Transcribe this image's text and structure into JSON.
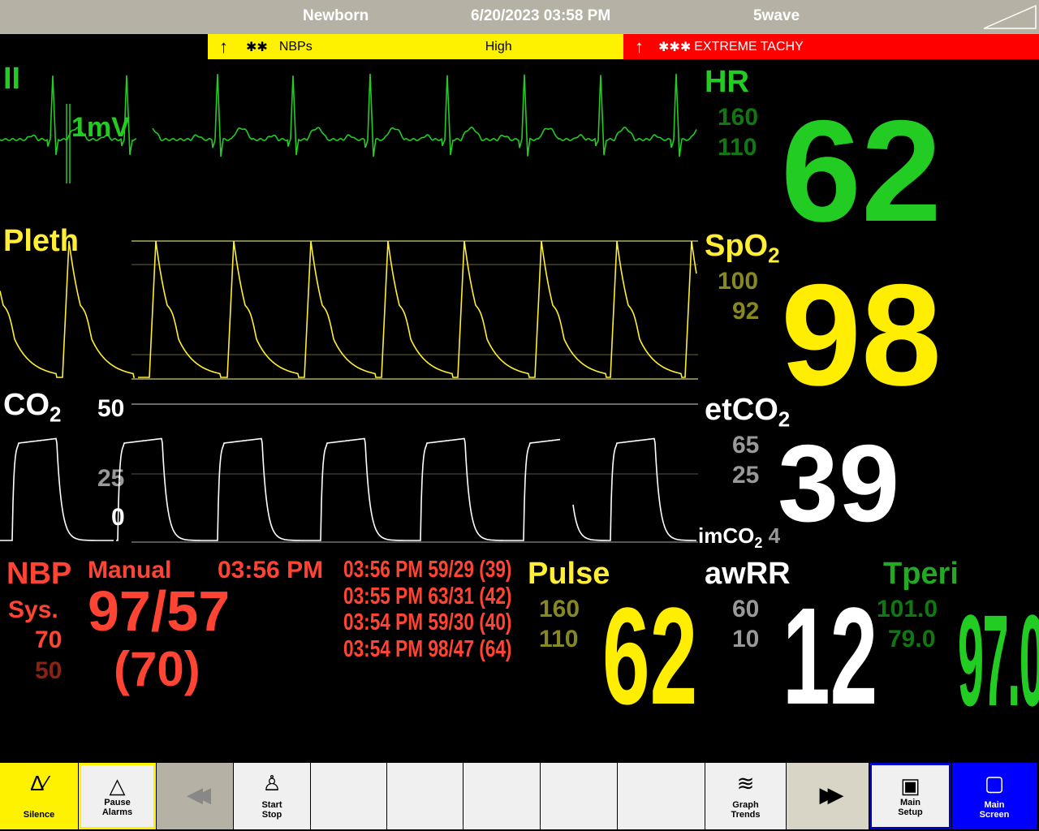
{
  "header": {
    "patient_type": "Newborn",
    "datetime": "6/20/2023 03:58 PM",
    "layout": "5wave"
  },
  "alarms": [
    {
      "arrow": "↑",
      "priority": "✱✱",
      "label": "NBPs",
      "detail": "High",
      "color": "#fff200"
    },
    {
      "arrow": "↑",
      "priority": "✱✱✱",
      "label": "EXTREME TACHY",
      "color": "#ff0000"
    }
  ],
  "waves": {
    "ecg": {
      "label": "II",
      "scale": "1mV",
      "color": "#22cc22"
    },
    "pleth": {
      "label": "Pleth",
      "color": "#ffee33"
    },
    "co2": {
      "label": "CO",
      "sub": "2",
      "scale_top": "50",
      "scale_mid": "25",
      "scale_low": "0",
      "color": "#ffffff"
    }
  },
  "params": {
    "hr": {
      "label": "HR",
      "high": "160",
      "low": "110",
      "value": "62"
    },
    "spo2": {
      "label": "SpO",
      "sub": "2",
      "high": "100",
      "low": "92",
      "value": "98"
    },
    "etco2": {
      "label": "etCO",
      "sub": "2",
      "high": "65",
      "low": "25",
      "value": "39",
      "im_label": "imCO",
      "im_sub": "2",
      "im_value": "4"
    },
    "nbp": {
      "label": "NBP",
      "mode": "Manual",
      "time": "03:56 PM",
      "sys_label": "Sys.",
      "high": "70",
      "low": "50",
      "value": "97/57",
      "mean": "(70)",
      "history": [
        "03:56 PM 59/29 (39)",
        "03:55 PM 63/31 (42)",
        "03:54 PM 59/30 (40)",
        "03:54 PM 98/47 (64)"
      ]
    },
    "pulse": {
      "label": "Pulse",
      "high": "160",
      "low": "110",
      "value": "62"
    },
    "awrr": {
      "label": "awRR",
      "high": "60",
      "low": "10",
      "value": "12"
    },
    "tperi": {
      "label": "Tperi",
      "high": "101.0",
      "low": "79.0",
      "value": "97.0"
    }
  },
  "buttons": [
    {
      "name": "silence",
      "icon": "bell-off-icon",
      "lines": [
        "Silence"
      ],
      "bg": "#fff200"
    },
    {
      "name": "pause-alarms",
      "icon": "alarm-pause-icon",
      "lines": [
        "Pause",
        "Alarms"
      ]
    },
    {
      "name": "prev-page",
      "icon": "rewind-icon",
      "lines": []
    },
    {
      "name": "start-stop",
      "icon": "nbp-person-icon",
      "lines": [
        "Start",
        "Stop"
      ]
    },
    {
      "name": "empty-1",
      "lines": []
    },
    {
      "name": "empty-2",
      "lines": []
    },
    {
      "name": "empty-3",
      "lines": []
    },
    {
      "name": "empty-4",
      "lines": []
    },
    {
      "name": "empty-5",
      "lines": []
    },
    {
      "name": "graph-trends",
      "icon": "trend-graph-icon",
      "lines": [
        "Graph",
        "Trends"
      ]
    },
    {
      "name": "next-page",
      "icon": "fast-forward-icon",
      "lines": []
    },
    {
      "name": "main-setup",
      "icon": "setup-icon",
      "lines": [
        "Main",
        "Setup"
      ]
    },
    {
      "name": "main-screen",
      "icon": "screen-icon",
      "lines": [
        "Main",
        "Screen"
      ],
      "bg": "#0000ff"
    }
  ]
}
